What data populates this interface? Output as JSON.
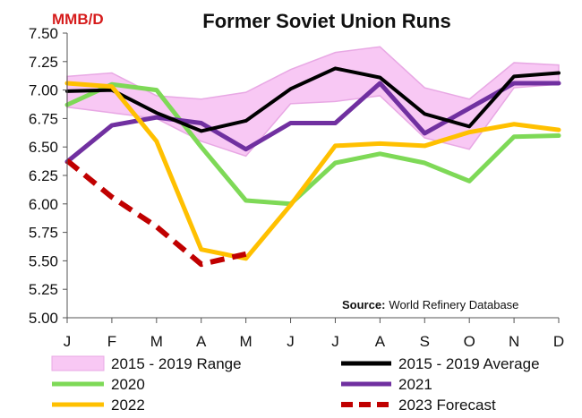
{
  "chart_data": {
    "type": "line",
    "title": "Former Soviet Union Runs",
    "unit_label": "MMB/D",
    "source_label": "Source:",
    "source_text": "World Refinery Database",
    "categories": [
      "J",
      "F",
      "M",
      "A",
      "M",
      "J",
      "J",
      "A",
      "S",
      "O",
      "N",
      "D"
    ],
    "ylim": [
      5.0,
      7.5
    ],
    "yticks": [
      "5.00",
      "5.25",
      "5.50",
      "5.75",
      "6.00",
      "6.25",
      "6.50",
      "6.75",
      "7.00",
      "7.25",
      "7.50"
    ],
    "grid": false,
    "range": {
      "name": "2015 - 2019 Range",
      "color": "#f8c8f4",
      "edge_color": "#e8a8e4",
      "low": [
        6.85,
        6.8,
        6.75,
        6.55,
        6.42,
        6.88,
        6.9,
        6.95,
        6.58,
        6.48,
        7.02,
        7.05
      ],
      "high": [
        7.12,
        7.15,
        6.95,
        6.92,
        6.98,
        7.18,
        7.33,
        7.38,
        7.02,
        6.92,
        7.24,
        7.22
      ]
    },
    "series": [
      {
        "name": "2015 - 2019 Average",
        "color": "#000000",
        "dash": false,
        "values": [
          6.99,
          7.0,
          6.8,
          6.64,
          6.73,
          7.01,
          7.19,
          7.11,
          6.79,
          6.68,
          7.12,
          7.15
        ]
      },
      {
        "name": "2020",
        "color": "#7ed957",
        "dash": false,
        "values": [
          6.87,
          7.05,
          7.0,
          6.5,
          6.03,
          6.0,
          6.36,
          6.44,
          6.36,
          6.2,
          6.59,
          6.6
        ]
      },
      {
        "name": "2021",
        "color": "#7030a0",
        "dash": false,
        "values": [
          6.37,
          6.69,
          6.76,
          6.71,
          6.48,
          6.71,
          6.71,
          7.06,
          6.62,
          6.84,
          7.06,
          7.06
        ]
      },
      {
        "name": "2022",
        "color": "#ffc000",
        "dash": false,
        "values": [
          7.06,
          7.03,
          6.55,
          5.6,
          5.52,
          5.99,
          6.51,
          6.53,
          6.51,
          6.63,
          6.7,
          6.65
        ]
      },
      {
        "name": "2023 Forecast",
        "color": "#c00000",
        "dash": true,
        "values": [
          6.38,
          6.06,
          5.8,
          5.47,
          5.56,
          null,
          null,
          null,
          null,
          null,
          null,
          null
        ]
      }
    ]
  }
}
